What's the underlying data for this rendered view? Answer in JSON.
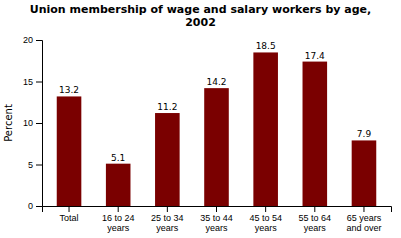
{
  "chart_data": {
    "type": "bar",
    "title": "Union membership of wage and salary workers by age,\n2002",
    "categories": [
      "Total",
      "16 to 24\nyears",
      "25 to 34\nyears",
      "35 to 44\nyears",
      "45 to 54\nyears",
      "55 to 64\nyears",
      "65 years\nand over"
    ],
    "values": [
      13.2,
      5.1,
      11.2,
      14.2,
      18.5,
      17.4,
      7.9
    ],
    "color": "#7a0000",
    "ylabel": "Percent",
    "ylim": [
      0,
      20
    ],
    "yticks": [
      0,
      5,
      10,
      15,
      20
    ],
    "grid": false,
    "data_labels": true
  }
}
